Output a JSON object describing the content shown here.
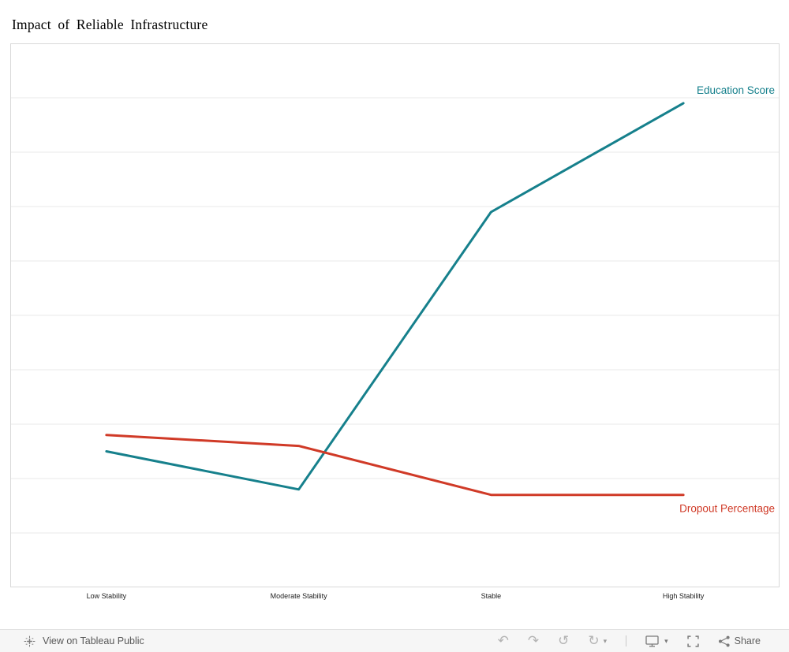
{
  "title": "Impact of Reliable Infrastructure",
  "chart_data": {
    "type": "line",
    "title": "Impact of Reliable Infrastructure",
    "categories": [
      "Low Stability",
      "Moderate Stability",
      "Stable",
      "High Stability"
    ],
    "series": [
      {
        "name": "Education Score",
        "color": "#16808c",
        "values": [
          25,
          18,
          69,
          89
        ],
        "label_position": "above"
      },
      {
        "name": "Dropout Percentage",
        "color": "#d03a27",
        "values": [
          28,
          26,
          17,
          17
        ],
        "label_position": "below"
      }
    ],
    "ylim": [
      0,
      100
    ],
    "y_gridline_step": 10,
    "grid": "horizontal",
    "legend": "inline-end-labels",
    "x_axis_labels_visible": true,
    "y_axis_labels_visible": false
  },
  "toolbar": {
    "view_label": "View on Tableau Public",
    "share_label": "Share",
    "glyphs": {
      "undo": "↶",
      "redo": "↷",
      "revert": "↺",
      "refresh": "↻",
      "caret": "▾"
    }
  },
  "colors": {
    "grid": "#e9e9e9",
    "plot_border": "#d9d9d9",
    "toolbar_bg": "#f6f6f6",
    "toolbar_border": "#e1e1e1",
    "icon_dim": "#b3b3b3",
    "icon_dark": "#7a7a7a",
    "toolbar_text": "#585858"
  }
}
